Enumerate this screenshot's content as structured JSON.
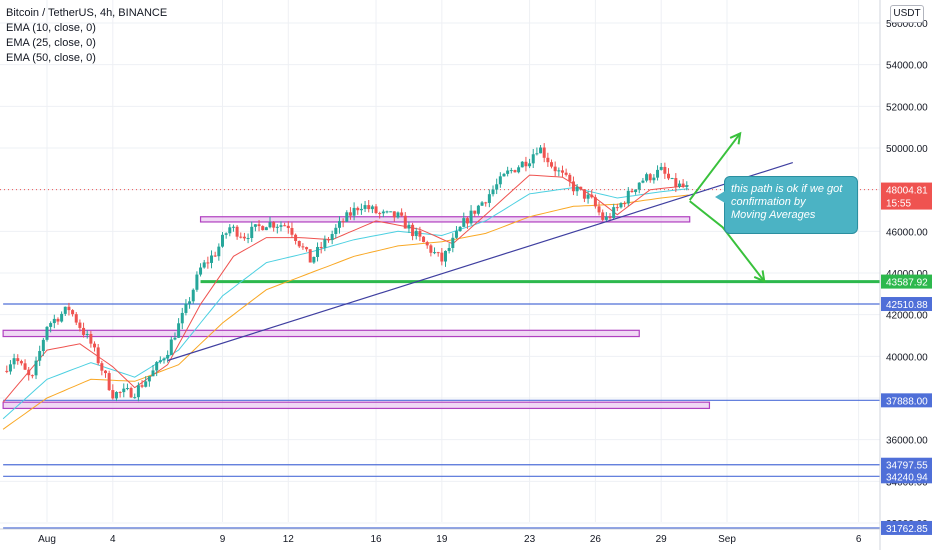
{
  "legend": {
    "title": "Bitcoin / TetherUS, 4h, BINANCE",
    "ema": [
      "EMA (10, close, 0)",
      "EMA (25, close, 0)",
      "EMA (50, close, 0)"
    ]
  },
  "currency": "USDT",
  "annotation": {
    "text": "this path is ok if we got\nconfirmation by\nMoving Averages"
  },
  "price_tags": {
    "last_price": "48004.81",
    "countdown": "15:55",
    "labels": [
      "43587.92",
      "42510.88",
      "37888.00",
      "34797.55",
      "34240.94",
      "31762.85"
    ]
  },
  "colors": {
    "candle_up": "#26a69a",
    "candle_down": "#ef5350",
    "ema10": "#ef5350",
    "ema25": "#4dd0e1",
    "ema50": "#f9a825",
    "trendline": "#3f3fa0",
    "support_green": "#2db84d",
    "hline_blue": "#4f6fd8",
    "zone_purple": "#b040c0",
    "arrow_green": "#39c13c",
    "last_price_bg": "#ef5350"
  },
  "chart_data": {
    "type": "candlestick",
    "y_axis": {
      "range": [
        32000,
        57000
      ],
      "ticks": [
        32000,
        34000,
        36000,
        38000,
        40000,
        42000,
        44000,
        46000,
        48000,
        50000,
        52000,
        54000,
        56000
      ],
      "tick_labels": [
        "32000.00",
        "34000.00",
        "36000.00",
        "38000.00",
        "40000.00",
        "42000.00",
        "44000.00",
        "46000.00",
        "48000.00",
        "50000.00",
        "52000.00",
        "54000.00",
        "56000.00"
      ]
    },
    "x_axis": {
      "range": [
        "Jul 29",
        "Sep 7"
      ],
      "tick_labels": [
        "Aug",
        "4",
        "9",
        "12",
        "16",
        "19",
        "23",
        "26",
        "29",
        "Sep",
        "6"
      ],
      "tick_days": [
        1,
        4,
        9,
        12,
        16,
        19,
        23,
        26,
        29,
        32,
        38
      ]
    },
    "series_anchors": {
      "close": [
        [
          -1.0,
          39300
        ],
        [
          -0.5,
          40000
        ],
        [
          0.3,
          38800
        ],
        [
          1.0,
          41500
        ],
        [
          2.0,
          42300
        ],
        [
          3.0,
          40600
        ],
        [
          4.0,
          38200
        ],
        [
          5.0,
          38300
        ],
        [
          5.8,
          39200
        ],
        [
          6.5,
          40300
        ],
        [
          7.3,
          42200
        ],
        [
          8.0,
          44200
        ],
        [
          8.7,
          45000
        ],
        [
          9.3,
          46200
        ],
        [
          10.0,
          45800
        ],
        [
          11.0,
          46400
        ],
        [
          12.0,
          46300
        ],
        [
          13.0,
          44600
        ],
        [
          13.7,
          45500
        ],
        [
          14.5,
          46500
        ],
        [
          15.3,
          47300
        ],
        [
          16.2,
          46800
        ],
        [
          17.0,
          46700
        ],
        [
          18.0,
          45600
        ],
        [
          19.0,
          44600
        ],
        [
          20.0,
          46400
        ],
        [
          21.0,
          47600
        ],
        [
          22.0,
          48800
        ],
        [
          23.0,
          49500
        ],
        [
          23.4,
          50100
        ],
        [
          24.0,
          49200
        ],
        [
          25.0,
          48100
        ],
        [
          25.8,
          47500
        ],
        [
          26.4,
          46500
        ],
        [
          27.0,
          47100
        ],
        [
          28.0,
          48400
        ],
        [
          29.0,
          48900
        ],
        [
          29.5,
          48300
        ],
        [
          30.3,
          48000
        ]
      ],
      "ema10": [
        [
          -1.0,
          37800
        ],
        [
          1.0,
          40300
        ],
        [
          2.5,
          40600
        ],
        [
          4.0,
          39500
        ],
        [
          5.0,
          38500
        ],
        [
          6.5,
          39600
        ],
        [
          8.0,
          42500
        ],
        [
          9.5,
          44800
        ],
        [
          11.0,
          45700
        ],
        [
          12.5,
          45700
        ],
        [
          14.0,
          45600
        ],
        [
          16.0,
          46500
        ],
        [
          18.0,
          46100
        ],
        [
          19.5,
          45400
        ],
        [
          21.0,
          46800
        ],
        [
          23.0,
          48700
        ],
        [
          24.5,
          48600
        ],
        [
          26.0,
          47600
        ],
        [
          27.0,
          46800
        ],
        [
          28.5,
          48000
        ],
        [
          30.3,
          48200
        ]
      ],
      "ema25": [
        [
          -1.0,
          37000
        ],
        [
          1.0,
          38900
        ],
        [
          3.0,
          39700
        ],
        [
          5.0,
          39000
        ],
        [
          7.0,
          40300
        ],
        [
          9.0,
          42900
        ],
        [
          11.0,
          44500
        ],
        [
          13.0,
          45000
        ],
        [
          15.0,
          45600
        ],
        [
          17.0,
          46000
        ],
        [
          19.0,
          45800
        ],
        [
          21.0,
          46500
        ],
        [
          23.0,
          47800
        ],
        [
          25.0,
          48100
        ],
        [
          27.0,
          47600
        ],
        [
          29.0,
          47900
        ],
        [
          30.3,
          48050
        ]
      ],
      "ema50": [
        [
          -1.0,
          36500
        ],
        [
          1.0,
          38000
        ],
        [
          3.0,
          38900
        ],
        [
          5.0,
          38800
        ],
        [
          7.0,
          39600
        ],
        [
          9.0,
          41600
        ],
        [
          11.0,
          43200
        ],
        [
          13.0,
          44000
        ],
        [
          15.0,
          44800
        ],
        [
          17.0,
          45300
        ],
        [
          19.0,
          45500
        ],
        [
          21.0,
          45900
        ],
        [
          23.0,
          46700
        ],
        [
          25.0,
          47200
        ],
        [
          27.0,
          47300
        ],
        [
          29.0,
          47600
        ],
        [
          30.3,
          47750
        ]
      ]
    },
    "horizontal_lines": [
      {
        "price": 43587.92,
        "color": "green",
        "from_day": 8.0
      },
      {
        "price": 42510.88,
        "color": "blue",
        "from_day": -1.0
      },
      {
        "price": 37888.0,
        "color": "blue",
        "from_day": -1.0
      },
      {
        "price": 34797.55,
        "color": "blue",
        "from_day": -1.0
      },
      {
        "price": 34240.94,
        "color": "blue",
        "from_day": -1.0
      },
      {
        "price": 31762.85,
        "color": "blue",
        "from_day": -1.0
      }
    ],
    "zones": [
      {
        "from_day": 8.0,
        "to_day": 30.3,
        "top": 46700,
        "bottom": 46450
      },
      {
        "from_day": -1.0,
        "to_day": 28.0,
        "top": 41250,
        "bottom": 40950
      },
      {
        "from_day": -1.0,
        "to_day": 31.2,
        "top": 37800,
        "bottom": 37500
      }
    ],
    "trendline": [
      [
        6.5,
        39800
      ],
      [
        35.0,
        49300
      ]
    ],
    "projection_paths": [
      [
        [
          30.3,
          47500
        ],
        [
          32.6,
          50700
        ]
      ],
      [
        [
          30.3,
          47450
        ],
        [
          31.8,
          46200
        ],
        [
          33.7,
          43600
        ]
      ]
    ],
    "last_price": 48004.81
  }
}
